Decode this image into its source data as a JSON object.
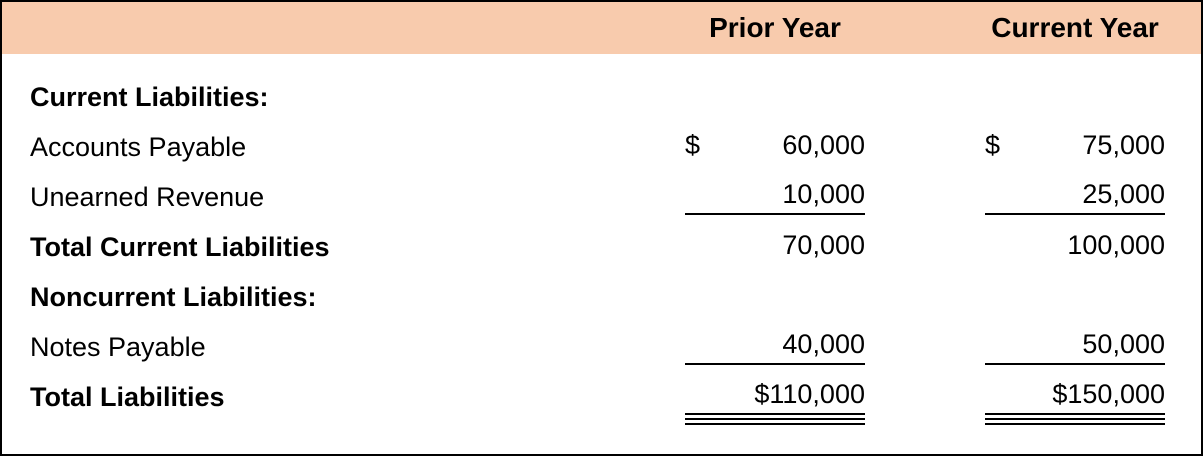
{
  "header": {
    "prior_label": "Prior Year",
    "current_label": "Current Year",
    "bg_color": "#F8CBAD",
    "border_color": "#000000"
  },
  "rows": [
    {
      "label": "Current Liabilities:",
      "style": "section",
      "prior": "",
      "current": ""
    },
    {
      "label": "Accounts Payable",
      "style": "item",
      "prior_currency": "$",
      "prior": "60,000",
      "current_currency": "$",
      "current": "75,000"
    },
    {
      "label": "Unearned Revenue",
      "style": "item",
      "prior": "10,000",
      "current": "25,000",
      "underline": "single"
    },
    {
      "label": "Total Current Liabilities",
      "style": "total",
      "prior": "70,000",
      "current": "100,000"
    },
    {
      "label": "Noncurrent Liabilities:",
      "style": "section",
      "prior": "",
      "current": ""
    },
    {
      "label": "Notes Payable",
      "style": "item",
      "prior": "40,000",
      "current": "50,000",
      "underline": "single"
    },
    {
      "label": "Total Liabilities",
      "style": "total",
      "prior": "$110,000",
      "current": "$150,000",
      "underline": "double"
    }
  ]
}
